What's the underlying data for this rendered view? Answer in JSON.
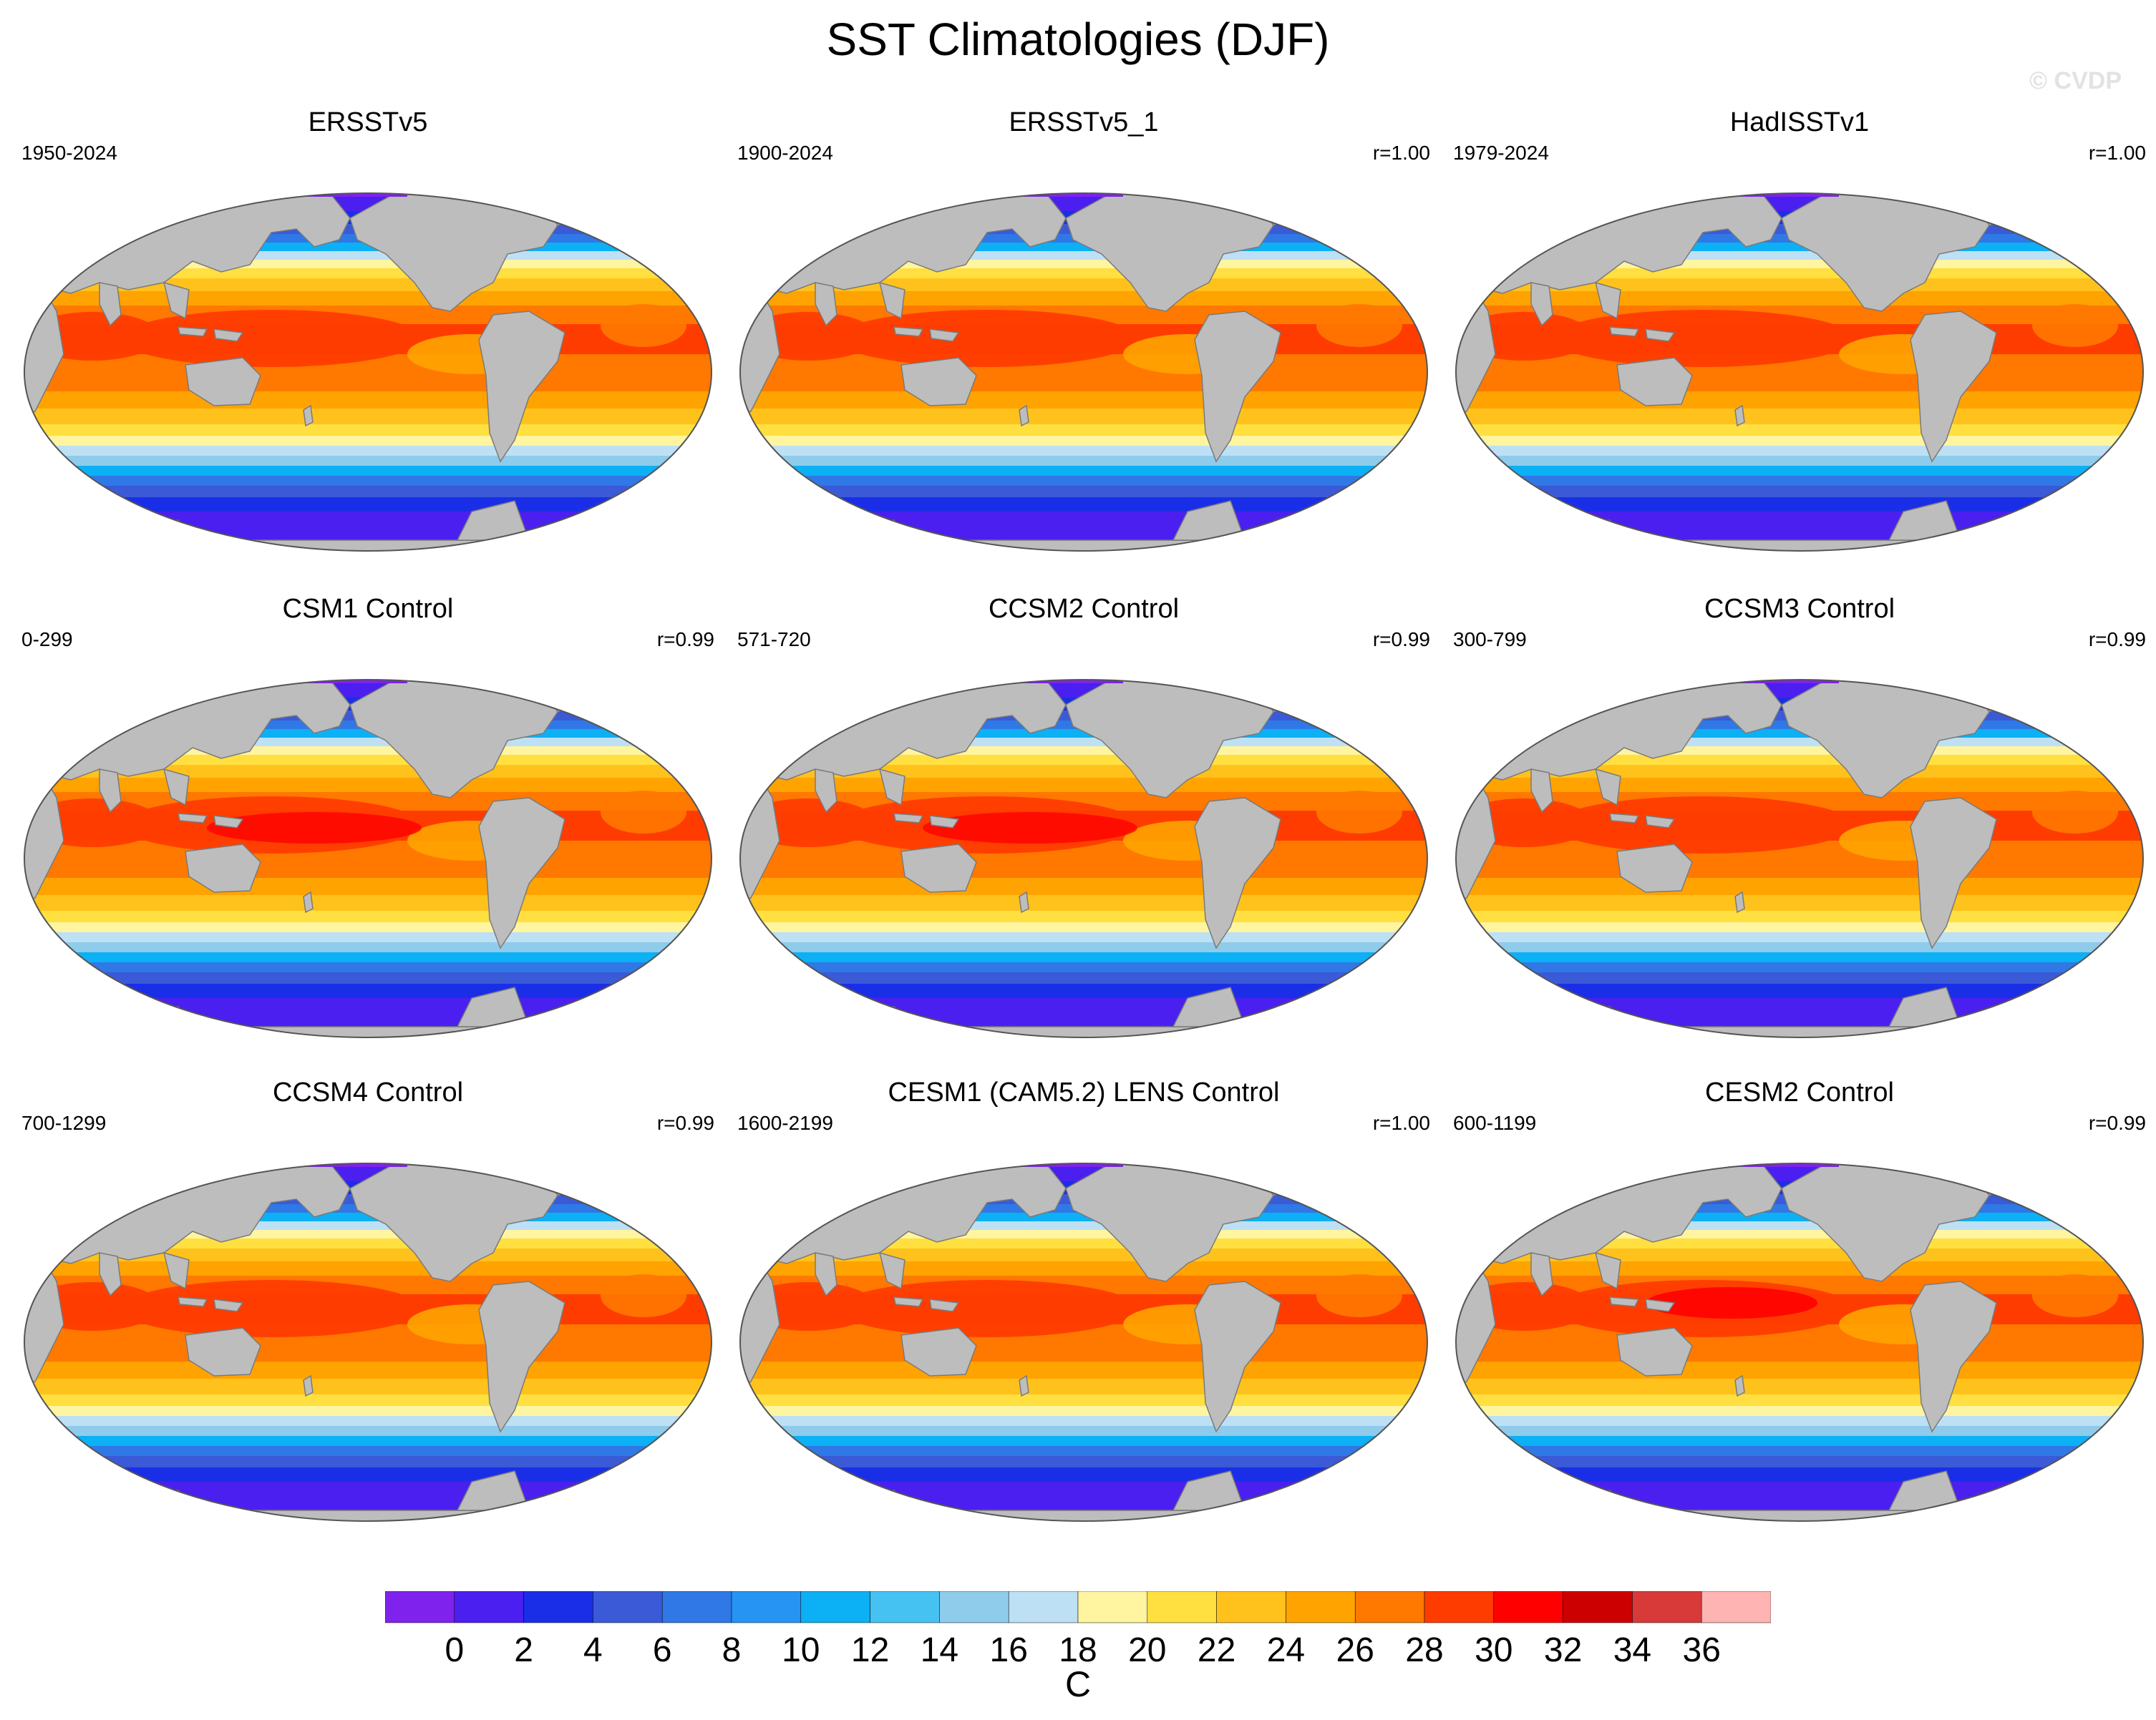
{
  "title": "SST Climatologies (DJF)",
  "watermark": "© CVDP",
  "panels": [
    {
      "name": "ERSSTv5",
      "years": "1950-2024",
      "r": ""
    },
    {
      "name": "ERSSTv5_1",
      "years": "1900-2024",
      "r": "r=1.00"
    },
    {
      "name": "HadISSTv1",
      "years": "1979-2024",
      "r": "r=1.00"
    },
    {
      "name": "CSM1 Control",
      "years": "0-299",
      "r": "r=0.99"
    },
    {
      "name": "CCSM2 Control",
      "years": "571-720",
      "r": "r=0.99"
    },
    {
      "name": "CCSM3 Control",
      "years": "300-799",
      "r": "r=0.99"
    },
    {
      "name": "CCSM4 Control",
      "years": "700-1299",
      "r": "r=0.99"
    },
    {
      "name": "CESM1 (CAM5.2) LENS Control",
      "years": "1600-2199",
      "r": "r=1.00"
    },
    {
      "name": "CESM2 Control",
      "years": "600-1199",
      "r": "r=0.99"
    }
  ],
  "colorbar": {
    "units": "C",
    "labels": [
      "0",
      "2",
      "4",
      "6",
      "8",
      "10",
      "12",
      "14",
      "16",
      "18",
      "20",
      "22",
      "24",
      "26",
      "28",
      "30",
      "32",
      "34",
      "36"
    ],
    "colors": [
      "#7f22ee",
      "#4a1ff0",
      "#1a2ee8",
      "#3a5ad8",
      "#2f78e6",
      "#2694f2",
      "#0cb0f4",
      "#45c2f2",
      "#8fcbeb",
      "#bde0f4",
      "#fff4a0",
      "#ffe040",
      "#ffc21d",
      "#ffa300",
      "#ff7800",
      "#ff3c00",
      "#ff0000",
      "#cc0000",
      "#d83a3a",
      "#ffb4b4"
    ]
  }
}
